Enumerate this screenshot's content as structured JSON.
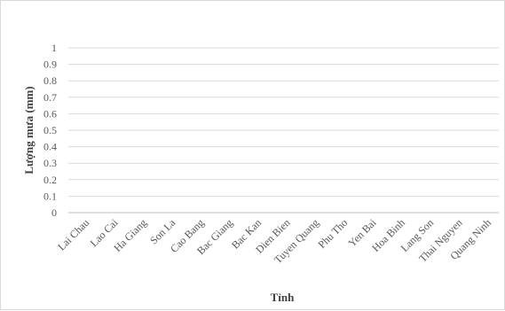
{
  "chart_data": {
    "type": "bar",
    "title": "",
    "xlabel": "Tỉnh",
    "ylabel": "Lượng mưa (mm)",
    "categories": [
      "Lai Chau",
      "Lao Cai",
      "Ha Giang",
      "Son La",
      "Cao Bang",
      "Bac Giang",
      "Bac Kan",
      "Dien Bien",
      "Tuyen Quang",
      "Phu Tho",
      "Yen Bai",
      "Hoa Binh",
      "Lang Son",
      "Thai Nguyen",
      "Quang Ninh"
    ],
    "values": [
      0,
      0,
      0,
      0,
      0,
      0,
      0,
      0,
      0,
      0,
      0,
      0,
      0,
      0,
      0
    ],
    "ylim": [
      0,
      1
    ],
    "yticks": [
      "0",
      "0.1",
      "0.2",
      "0.3",
      "0.4",
      "0.5",
      "0.6",
      "0.7",
      "0.8",
      "0.9",
      "1"
    ],
    "grid": true,
    "legend": "none",
    "colors": {
      "gridline": "#d9d9d9",
      "axis": "#bfbfbf",
      "text": "#595959"
    }
  }
}
